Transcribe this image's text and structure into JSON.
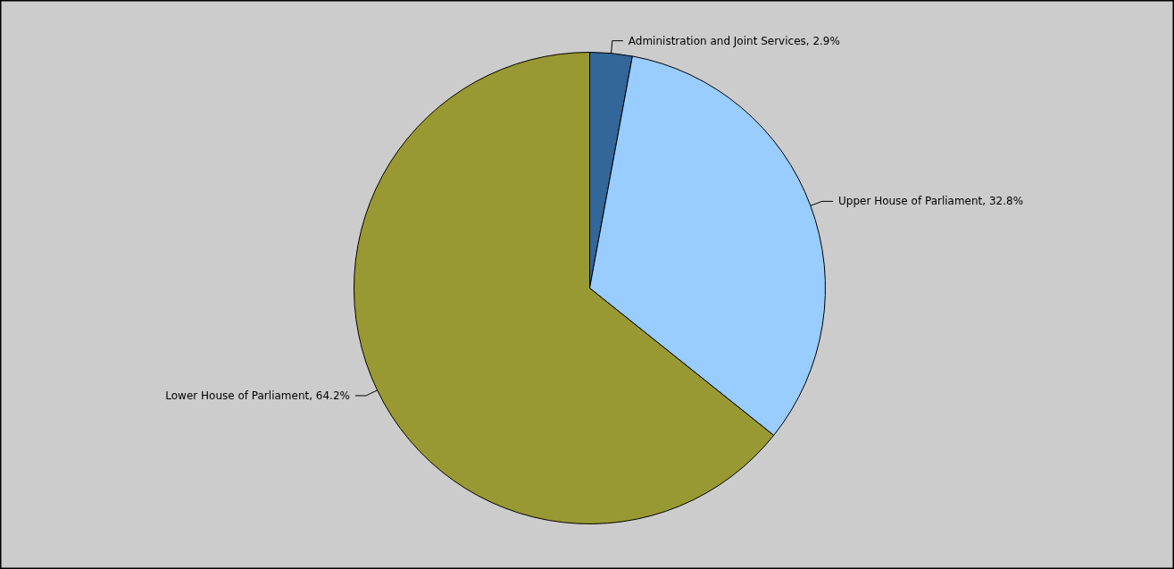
{
  "chart_data": {
    "type": "pie",
    "categories": [
      "Administration and Joint Services",
      "Upper House of Parliament",
      "Lower House of Parliament"
    ],
    "values": [
      2.9,
      32.8,
      64.2
    ],
    "value_labels": [
      "2.9%",
      "32.8%",
      "64.2%"
    ],
    "colors": [
      "#336699",
      "#99ccff",
      "#999933"
    ],
    "data_labels": true
  }
}
